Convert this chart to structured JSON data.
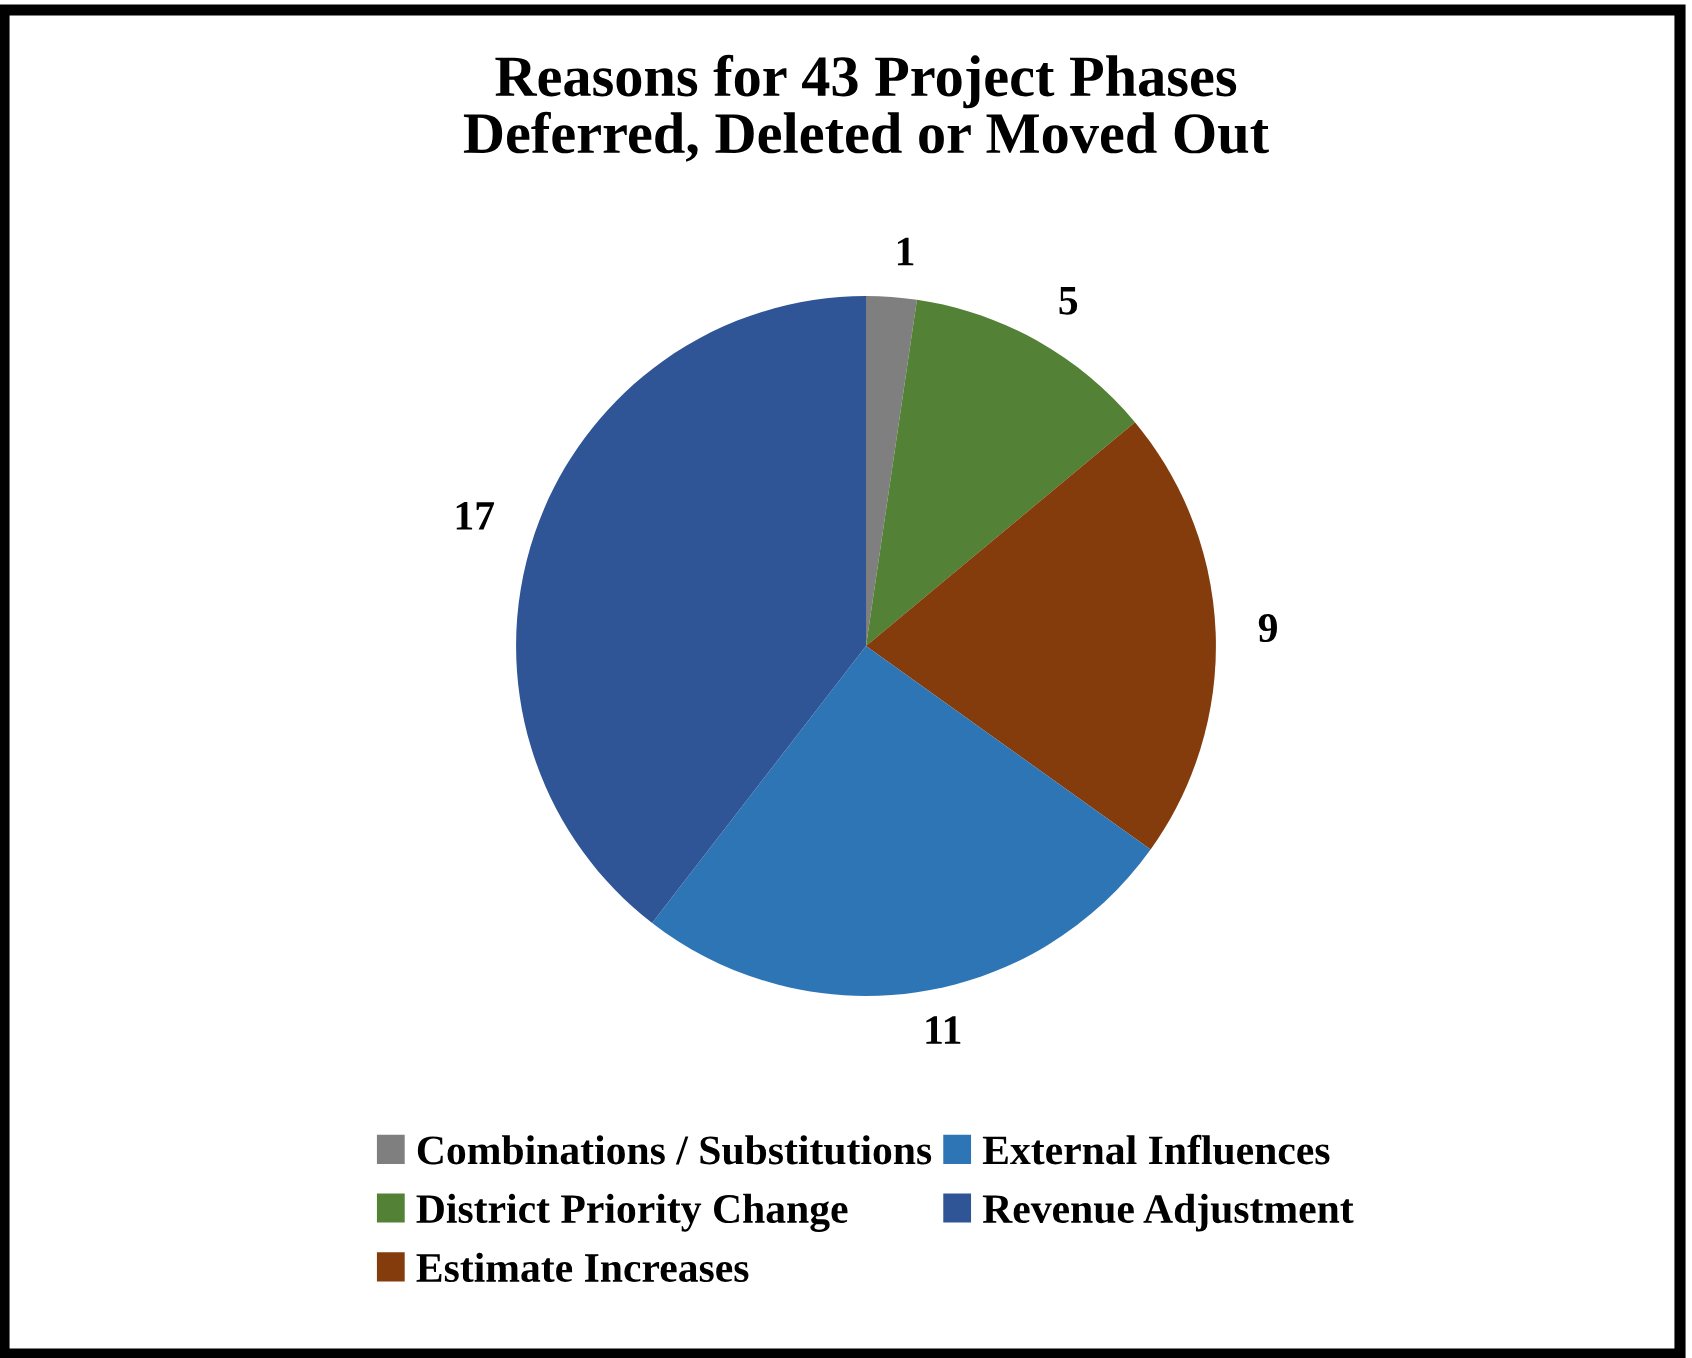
{
  "chart_data": {
    "type": "pie",
    "title": "Reasons for 43 Project Phases\nDeferred, Deleted or Moved Out",
    "categories": [
      "Combinations / Substitutions",
      "District Priority Change",
      "Estimate Increases",
      "External Influences",
      "Revenue Adjustment"
    ],
    "values": [
      1,
      5,
      9,
      11,
      17
    ],
    "colors": [
      "#7f7f7f",
      "#538135",
      "#843c0c",
      "#2e75b6",
      "#2f5597"
    ],
    "data_labels": true,
    "legend": "bottom"
  }
}
